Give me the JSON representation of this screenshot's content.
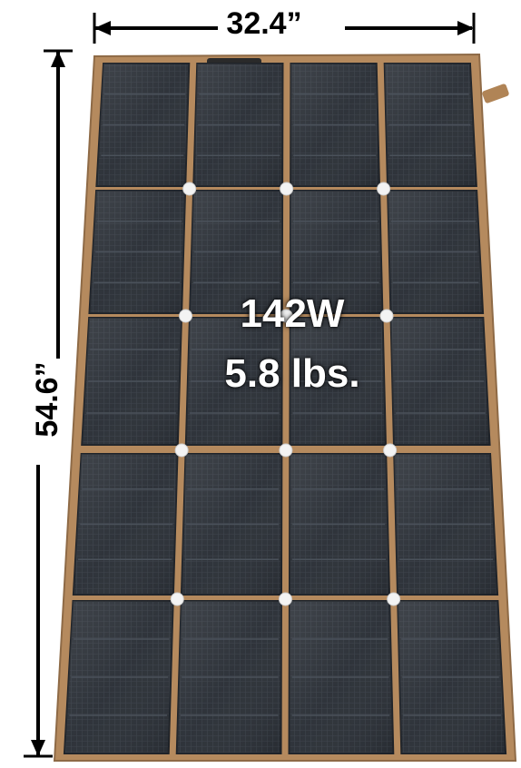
{
  "dimensions": {
    "width": "32.4”",
    "height": "54.6”"
  },
  "specs": {
    "power": "142W",
    "weight": "5.8 lbs."
  },
  "colors": {
    "frame": "#b58a5e",
    "frame_dark": "#8e6a46",
    "cell": "#2b3037",
    "cell_dark": "#1f2329",
    "grommet": "#f3f3f3"
  },
  "panel": {
    "columns": 4,
    "rows": 5
  }
}
